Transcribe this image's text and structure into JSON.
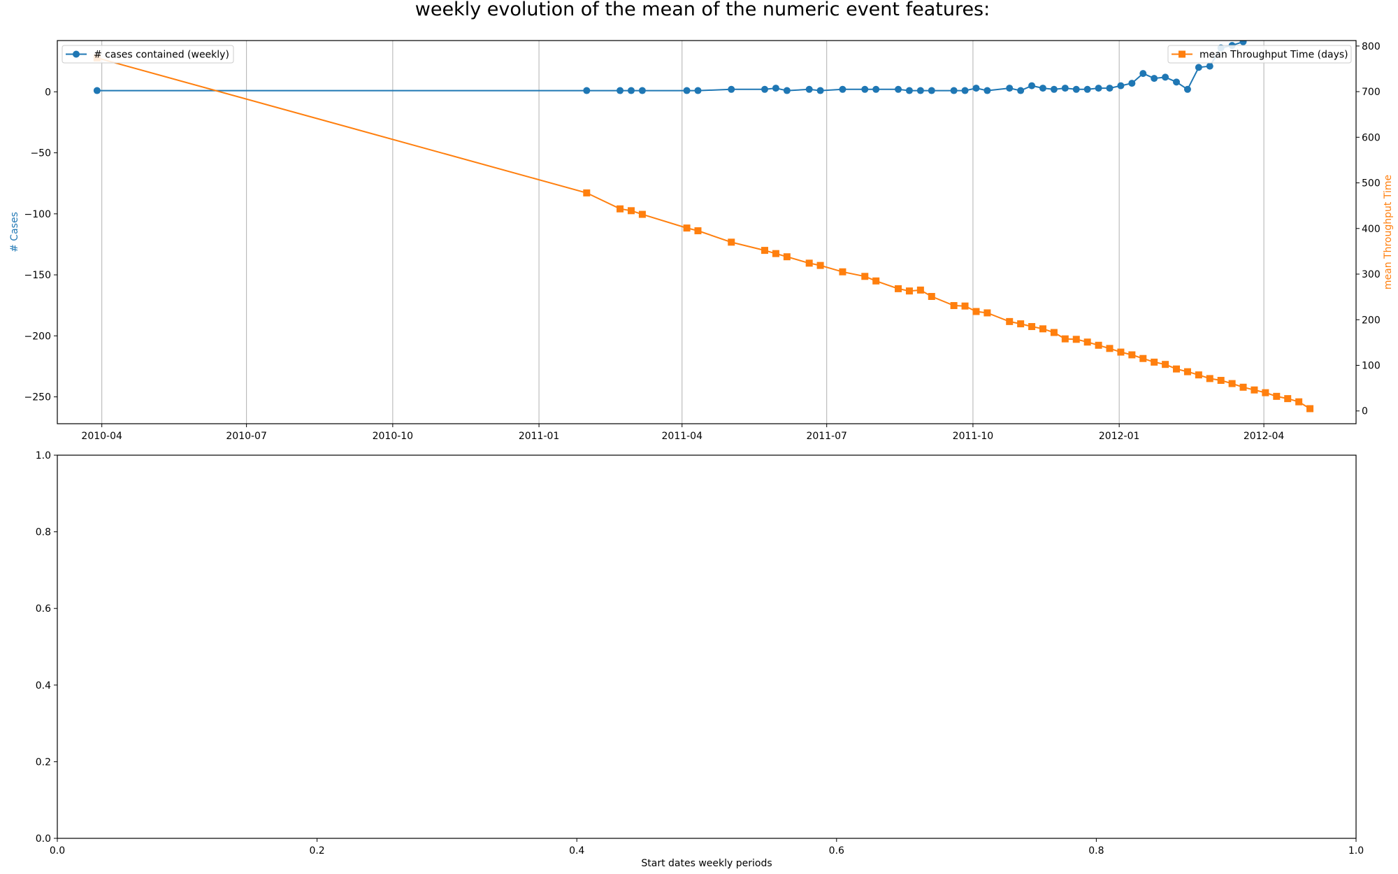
{
  "figure": {
    "title": "weekly evolution of the mean of the numeric event features:",
    "bottom_xlabel": "Start dates weekly periods"
  },
  "colors": {
    "cases": "#1f77b4",
    "throughput": "#ff7f0e",
    "grid": "#b0b0b0",
    "axes": "#000000"
  },
  "chart_data": [
    {
      "type": "line",
      "x_axis": "date",
      "xlim": [
        "2010-03-04",
        "2012-05-29"
      ],
      "x_ticks": [
        {
          "date": "2010-04-01",
          "label": "2010-04"
        },
        {
          "date": "2010-07-01",
          "label": "2010-07"
        },
        {
          "date": "2010-10-01",
          "label": "2010-10"
        },
        {
          "date": "2011-01-01",
          "label": "2011-01"
        },
        {
          "date": "2011-04-01",
          "label": "2011-04"
        },
        {
          "date": "2011-07-01",
          "label": "2011-07"
        },
        {
          "date": "2011-10-01",
          "label": "2011-10"
        },
        {
          "date": "2012-01-01",
          "label": "2012-01"
        },
        {
          "date": "2012-04-01",
          "label": "2012-04"
        }
      ],
      "grid": "vertical",
      "x": [
        "2010-03-29",
        "2011-01-31",
        "2011-02-21",
        "2011-02-28",
        "2011-03-07",
        "2011-04-04",
        "2011-04-11",
        "2011-05-02",
        "2011-05-23",
        "2011-05-30",
        "2011-06-06",
        "2011-06-20",
        "2011-06-27",
        "2011-07-11",
        "2011-07-25",
        "2011-08-01",
        "2011-08-15",
        "2011-08-22",
        "2011-08-29",
        "2011-09-05",
        "2011-09-19",
        "2011-09-26",
        "2011-10-03",
        "2011-10-10",
        "2011-10-24",
        "2011-10-31",
        "2011-11-07",
        "2011-11-14",
        "2011-11-21",
        "2011-11-28",
        "2011-12-05",
        "2011-12-12",
        "2011-12-19",
        "2011-12-26",
        "2012-01-02",
        "2012-01-09",
        "2012-01-16",
        "2012-01-23",
        "2012-01-30",
        "2012-02-06",
        "2012-02-13",
        "2012-02-20",
        "2012-02-27",
        "2012-03-05",
        "2012-03-12",
        "2012-03-19",
        "2012-03-26",
        "2012-04-02",
        "2012-04-09",
        "2012-04-16",
        "2012-04-23",
        "2012-04-30"
      ],
      "left_axis": {
        "label": "# Cases",
        "ylim": [
          -272,
          42
        ],
        "ticks": [
          0,
          -50,
          -100,
          -150,
          -200,
          -250
        ],
        "tick_labels": [
          "0",
          "−50",
          "−100",
          "−150",
          "−200",
          "−250"
        ]
      },
      "right_axis": {
        "label": "mean Throughput Time",
        "ylim": [
          -28,
          812
        ],
        "ticks": [
          0,
          100,
          200,
          300,
          400,
          500,
          600,
          700,
          800
        ],
        "tick_labels": [
          "0",
          "100",
          "200",
          "300",
          "400",
          "500",
          "600",
          "700",
          "800"
        ]
      },
      "series": [
        {
          "name": "# cases contained (weekly)",
          "axis": "left",
          "marker": "circle",
          "legend_position": "upper-left",
          "values": [
            1,
            1,
            1,
            1,
            1,
            1,
            1,
            2,
            2,
            3,
            1,
            2,
            1,
            2,
            2,
            2,
            2,
            1,
            1,
            1,
            1,
            1,
            3,
            1,
            3,
            1,
            5,
            3,
            2,
            3,
            2,
            2,
            3,
            3,
            5,
            7,
            15,
            11,
            12,
            8,
            2,
            20,
            21,
            36,
            38,
            41,
            null,
            null,
            null,
            null,
            null,
            null
          ]
        },
        {
          "name": "mean Throughput Time (days)",
          "axis": "right",
          "marker": "square",
          "legend_position": "upper-right",
          "values": [
            774,
            478,
            443,
            439,
            431,
            401,
            395,
            370,
            352,
            345,
            338,
            324,
            319,
            305,
            295,
            285,
            268,
            263,
            265,
            251,
            231,
            230,
            218,
            215,
            196,
            191,
            185,
            180,
            172,
            158,
            157,
            151,
            144,
            137,
            129,
            123,
            115,
            107,
            102,
            92,
            86,
            79,
            71,
            67,
            60,
            52,
            46,
            40,
            32,
            27,
            20,
            5
          ]
        }
      ]
    },
    {
      "type": "line",
      "xlim": [
        0,
        1
      ],
      "ylim": [
        0,
        1
      ],
      "x_ticks": [
        0.0,
        0.2,
        0.4,
        0.6,
        0.8,
        1.0
      ],
      "x_tick_labels": [
        "0.0",
        "0.2",
        "0.4",
        "0.6",
        "0.8",
        "1.0"
      ],
      "y_ticks": [
        0.0,
        0.2,
        0.4,
        0.6,
        0.8,
        1.0
      ],
      "y_tick_labels": [
        "0.0",
        "0.2",
        "0.4",
        "0.6",
        "0.8",
        "1.0"
      ],
      "xlabel": "Start dates weekly periods",
      "series": []
    }
  ]
}
